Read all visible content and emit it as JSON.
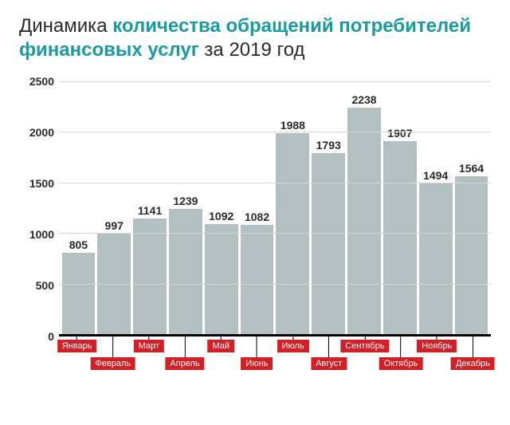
{
  "title": {
    "pre": "Динамика ",
    "bold": "количества обращений потребителей финансовых услуг",
    "post": " за 2019 год"
  },
  "chart": {
    "type": "bar",
    "ylim": [
      0,
      2500
    ],
    "ytick_step": 500,
    "yticks": [
      0,
      500,
      1000,
      1500,
      2000,
      2500
    ],
    "bar_color": "#b2c0c2",
    "grid_color": "#d9d9d9",
    "axis_color": "#000000",
    "background_color": "#ffffff",
    "value_label_fontsize": 14,
    "value_label_fontweight": "700",
    "month_label_bg": "#d32027",
    "month_label_color": "#ffffff",
    "month_label_fontsize": 11,
    "categories": [
      "Январь",
      "Февраль",
      "Март",
      "Апрель",
      "Май",
      "Июнь",
      "Июль",
      "Август",
      "Сентябрь",
      "Октябрь",
      "Ноябрь",
      "Декабрь"
    ],
    "values": [
      805,
      997,
      1141,
      1239,
      1092,
      1082,
      1988,
      1793,
      2238,
      1907,
      1494,
      1564
    ],
    "month_row": [
      0,
      1,
      0,
      1,
      0,
      1,
      0,
      1,
      0,
      1,
      0,
      1
    ]
  }
}
